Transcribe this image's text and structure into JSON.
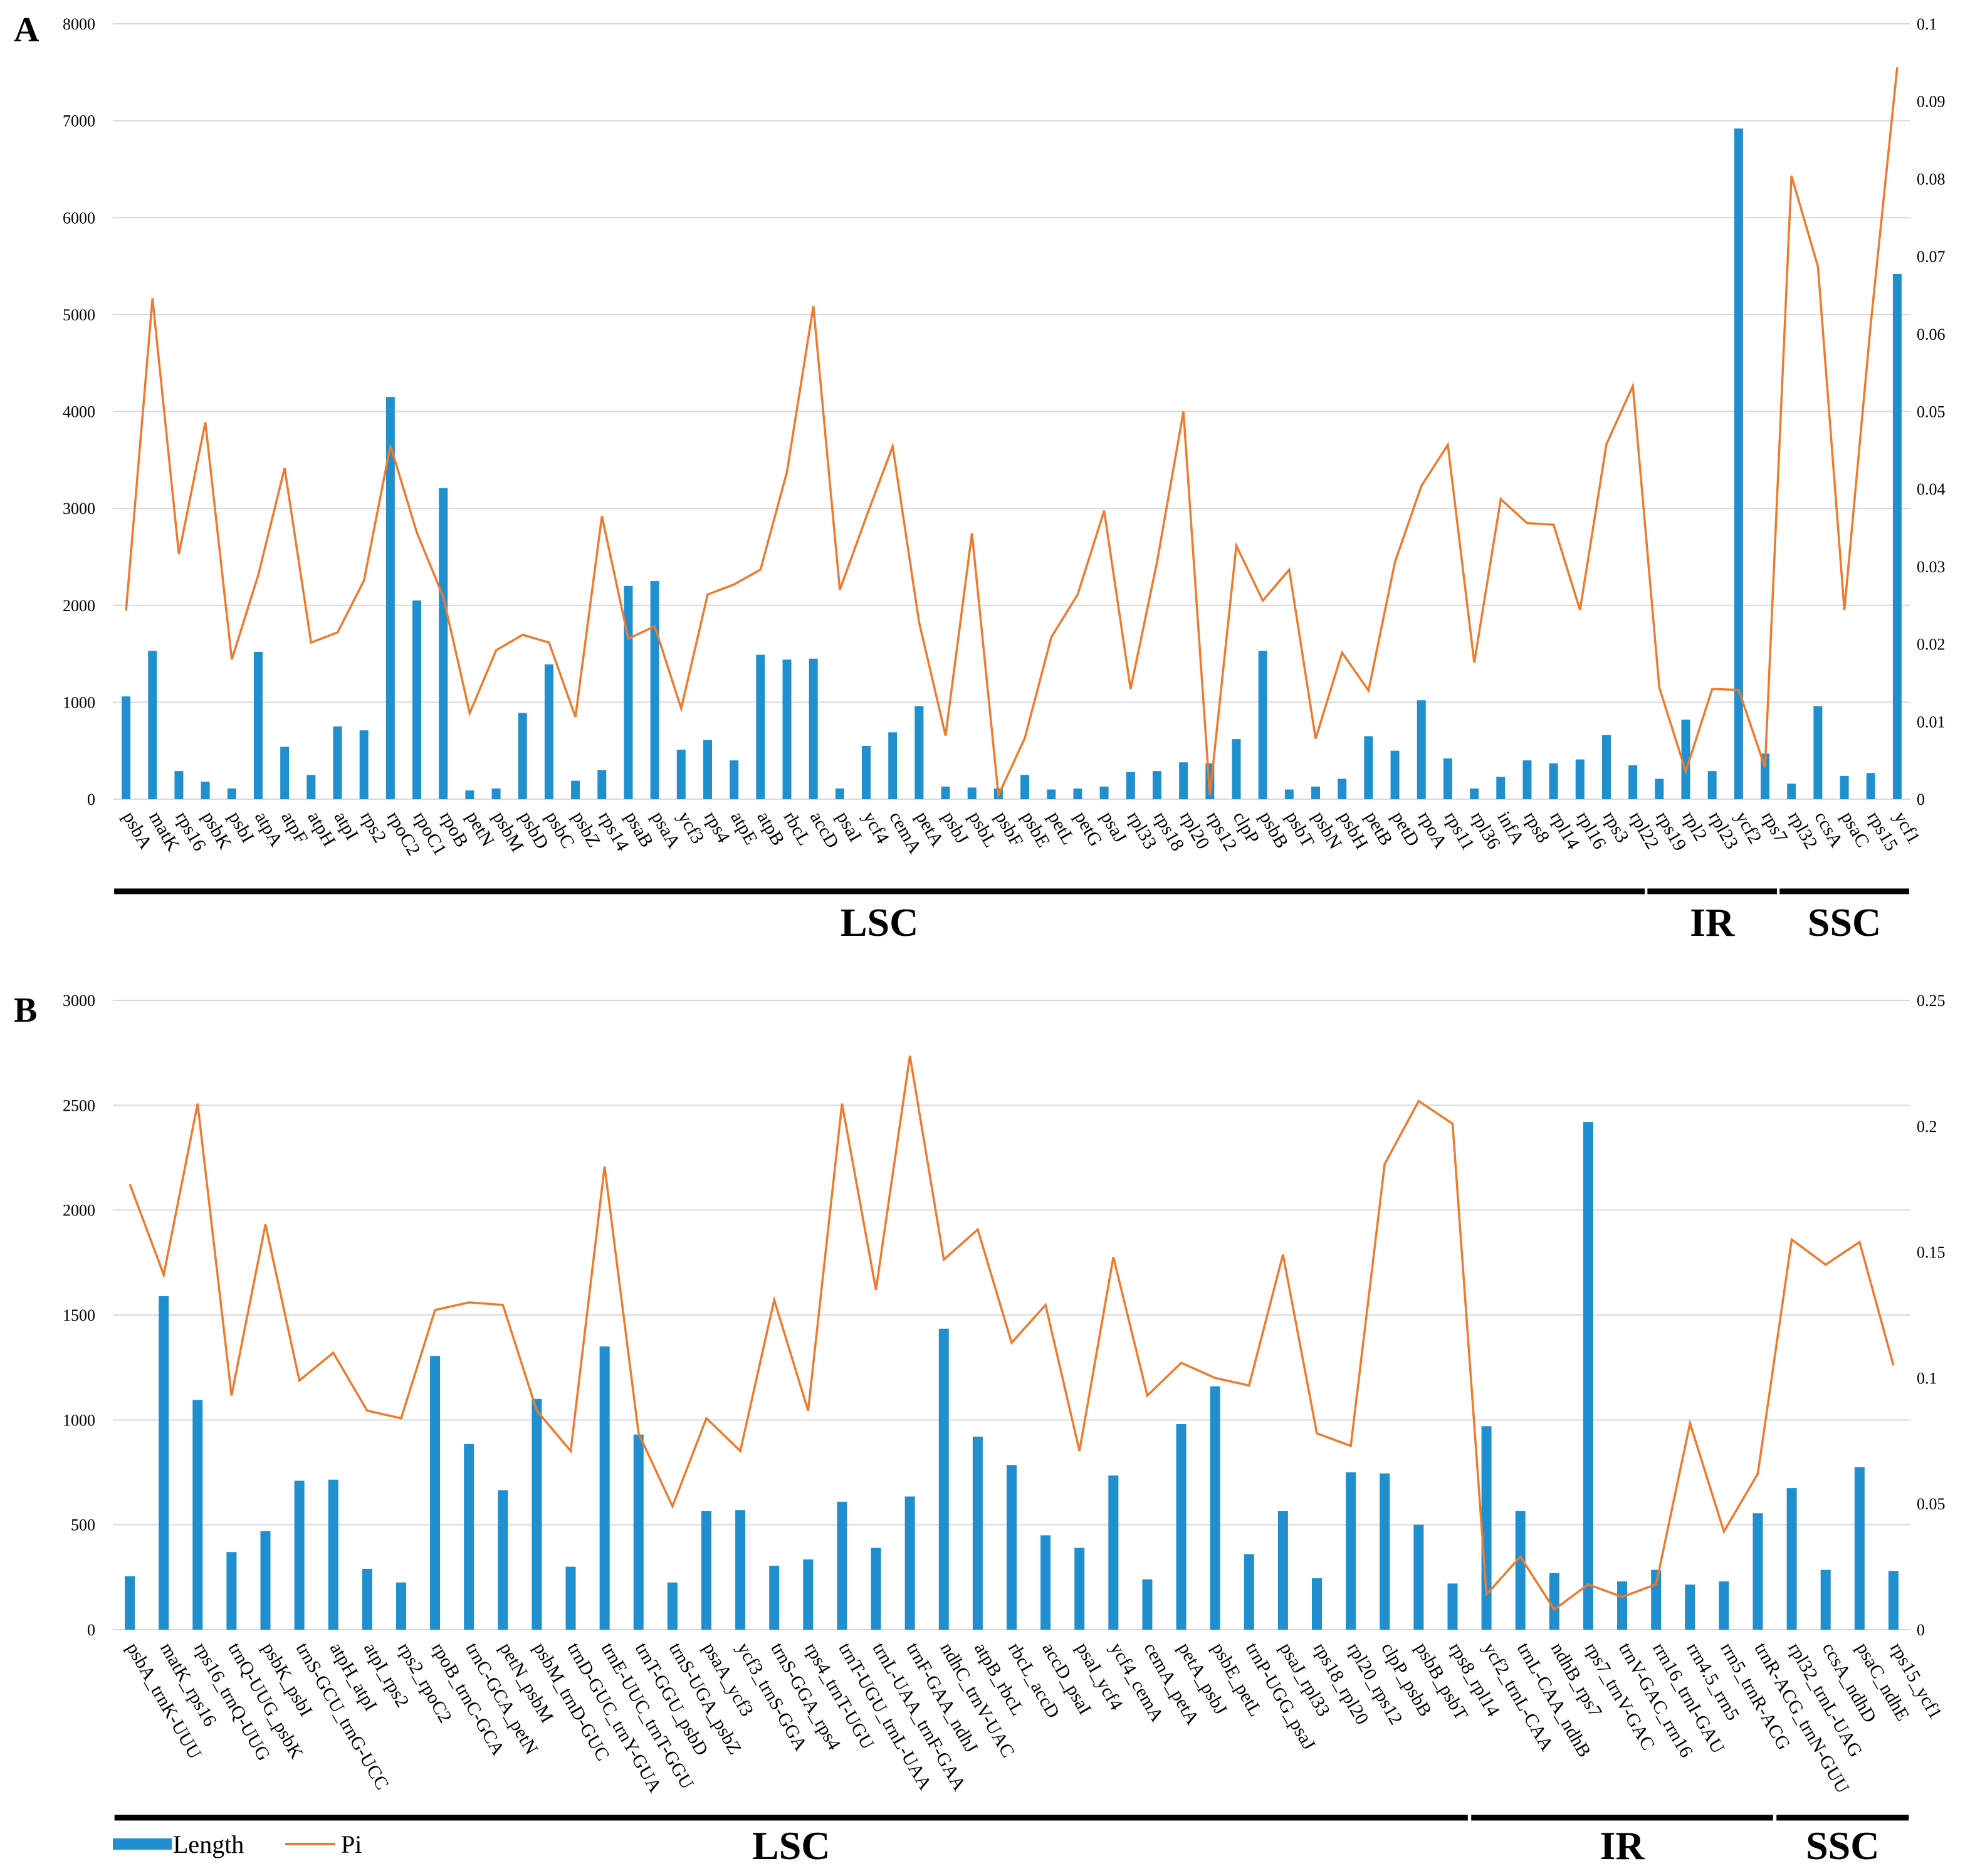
{
  "colors": {
    "length": "#1f8fcf",
    "pi": "#f07a2c",
    "region_bar": "#000000",
    "grid": "#d9d9d9"
  },
  "legend": {
    "length": "Length",
    "pi": "Pi"
  },
  "chart_data": [
    {
      "panel": "A",
      "type": "bar+line",
      "title": "",
      "xlabel": "",
      "ylabel": "",
      "y_left_ticks": [
        "0",
        "1000",
        "2000",
        "3000",
        "4000",
        "5000",
        "6000",
        "7000",
        "8000"
      ],
      "y_right_ticks": [
        "0",
        "0.01",
        "0.02",
        "0.03",
        "0.04",
        "0.05",
        "0.06",
        "0.07",
        "0.08",
        "0.09",
        "0.1"
      ],
      "ylim_left": [
        0,
        8000
      ],
      "ylim_right": [
        0,
        0.1
      ],
      "categories": [
        "psbA",
        "matK",
        "rps16",
        "psbK",
        "psbI",
        "atpA",
        "atpF",
        "atpH",
        "atpI",
        "rps2",
        "rpoC2",
        "rpoC1",
        "rpoB",
        "petN",
        "psbM",
        "psbD",
        "psbC",
        "psbZ",
        "rps14",
        "psaB",
        "psaA",
        "ycf3",
        "rps4",
        "atpE",
        "atpB",
        "rbcL",
        "accD",
        "psaI",
        "ycf4",
        "cemA",
        "petA",
        "psbJ",
        "psbL",
        "psbF",
        "psbE",
        "petL",
        "petG",
        "psaJ",
        "rpl33",
        "rps18",
        "rpl20",
        "rps12",
        "clpP",
        "psbB",
        "psbT",
        "psbN",
        "psbH",
        "petB",
        "petD",
        "rpoA",
        "rps11",
        "rpl36",
        "infA",
        "rps8",
        "rpl14",
        "rpl16",
        "rps3",
        "rpl22",
        "rps19",
        "rpl2",
        "rpl23",
        "ycf2",
        "rps7",
        "rpl32",
        "ccsA",
        "psaC",
        "rps15",
        "ycf1"
      ],
      "series": [
        {
          "name": "Length",
          "axis": "left",
          "values": [
            1060,
            1530,
            290,
            180,
            110,
            1520,
            540,
            250,
            750,
            710,
            4150,
            2050,
            3210,
            90,
            110,
            890,
            1390,
            190,
            300,
            2200,
            2250,
            510,
            610,
            400,
            1490,
            1440,
            1450,
            110,
            550,
            690,
            960,
            130,
            120,
            110,
            250,
            100,
            110,
            130,
            280,
            290,
            380,
            370,
            620,
            1530,
            100,
            130,
            210,
            650,
            500,
            1020,
            420,
            110,
            230,
            400,
            370,
            410,
            660,
            350,
            210,
            820,
            290,
            6920,
            470,
            160,
            960,
            240,
            270,
            5420
          ]
        },
        {
          "name": "Pi",
          "axis": "right",
          "values": [
            0.0243,
            0.0646,
            0.0316,
            0.0486,
            0.018,
            0.0289,
            0.0427,
            0.0202,
            0.0215,
            0.0282,
            0.0456,
            0.0344,
            0.0261,
            0.0111,
            0.0192,
            0.0212,
            0.0202,
            0.0106,
            0.0365,
            0.0207,
            0.0223,
            0.0117,
            0.0264,
            0.0277,
            0.0296,
            0.0422,
            0.0636,
            0.027,
            0.0364,
            0.0455,
            0.0228,
            0.0082,
            0.0343,
            0.0005,
            0.0079,
            0.0209,
            0.0264,
            0.0372,
            0.0142,
            0.0306,
            0.05,
            0.0005,
            0.0327,
            0.0256,
            0.0296,
            0.0078,
            0.0189,
            0.014,
            0.0306,
            0.0404,
            0.0457,
            0.0176,
            0.0387,
            0.0356,
            0.0354,
            0.0244,
            0.0458,
            0.0533,
            0.0144,
            0.0036,
            0.0142,
            0.0141,
            0.0041,
            0.0804,
            0.0687,
            0.0244,
            0.0613,
            0.0944
          ]
        }
      ],
      "regions": [
        {
          "label": "LSC",
          "first": "psbA",
          "last": "rpl22"
        },
        {
          "label": "IR",
          "first": "rps19",
          "last": "rps7"
        },
        {
          "label": "SSC",
          "first": "rpl32",
          "last": "ycf1"
        }
      ]
    },
    {
      "panel": "B",
      "type": "bar+line",
      "title": "",
      "xlabel": "",
      "ylabel": "",
      "y_left_ticks": [
        "0",
        "500",
        "1000",
        "1500",
        "2000",
        "2500",
        "3000"
      ],
      "y_right_ticks": [
        "0",
        "0.05",
        "0.1",
        "0.15",
        "0.2",
        "0.25"
      ],
      "ylim_left": [
        0,
        3000
      ],
      "ylim_right": [
        0,
        0.25
      ],
      "categories": [
        "psbA_trnK-UUU",
        "matK_rps16",
        "rps16_trnQ-UUG",
        "trnQ-UUG_psbK",
        "psbK_psbI",
        "trnS-GCU_trnG-UCC",
        "atpH_atpI",
        "atpI_rps2",
        "rps2_rpoC2",
        "rpoB_trnC-GCA",
        "trnC-GCA_petN",
        "petN_psbM",
        "psbM_trnD-GUC",
        "trnD-GUC_trnY-GUA",
        "trnE-UUC_trnT-GGU",
        "trnT-GGU_psbD",
        "trnS-UGA_psbZ",
        "psaA_ycf3",
        "ycf3_trnS-GGA",
        "trnS-GGA_rps4",
        "rps4_trnT-UGU",
        "trnT-UGU_trnL-UAA",
        "trnL-UAA_trnF-GAA",
        "trnF-GAA_ndhJ",
        "ndhC_trnV-UAC",
        "atpB_rbcL",
        "rbcL_accD",
        "accD_psaI",
        "psaI_ycf4",
        "ycf4_cemA",
        "cemA_petA",
        "petA_psbJ",
        "psbE_petL",
        "trnP-UGG_psaJ",
        "psaJ_rpl33",
        "rps18_rpl20",
        "rpl20_rps12",
        "clpP_psbB",
        "psbB_psbT",
        "rps8_rpl14",
        "ycf2_trnL-CAA",
        "trnL-CAA_ndhB",
        "ndhB_rps7",
        "rps7_trnV-GAC",
        "trnV-GAC_rrn16",
        "rrn16_trnI-GAU",
        "rrn4.5_rrn5",
        "rrn5_trnR-ACG",
        "trnR-ACG_trnN-GUU",
        "rpl32_trnL-UAG",
        "ccsA_ndhD",
        "psaC_ndhE",
        "rps15_ycf1"
      ],
      "series": [
        {
          "name": "Length",
          "axis": "left",
          "values": [
            255,
            1590,
            1095,
            370,
            470,
            710,
            715,
            290,
            225,
            1305,
            885,
            665,
            1100,
            300,
            1350,
            930,
            225,
            565,
            570,
            305,
            335,
            610,
            390,
            635,
            1435,
            920,
            785,
            450,
            390,
            735,
            240,
            980,
            1160,
            360,
            565,
            245,
            750,
            745,
            500,
            220,
            970,
            565,
            270,
            2420,
            230,
            285,
            215,
            230,
            555,
            675,
            285,
            775,
            280
          ]
        },
        {
          "name": "Pi",
          "axis": "right",
          "values": [
            0.177,
            0.141,
            0.209,
            0.093,
            0.161,
            0.099,
            0.11,
            0.087,
            0.084,
            0.127,
            0.13,
            0.129,
            0.087,
            0.071,
            0.184,
            0.078,
            0.049,
            0.084,
            0.071,
            0.131,
            0.087,
            0.209,
            0.135,
            0.228,
            0.147,
            0.159,
            0.114,
            0.129,
            0.071,
            0.148,
            0.093,
            0.106,
            0.1,
            0.097,
            0.149,
            0.078,
            0.073,
            0.185,
            0.21,
            0.201,
            0.014,
            0.029,
            0.008,
            0.018,
            0.013,
            0.018,
            0.082,
            0.039,
            0.062,
            0.155,
            0.145,
            0.154,
            0.105
          ]
        }
      ],
      "regions": [
        {
          "label": "LSC",
          "first": "psbA_trnK-UUU",
          "last": "rps8_rpl14"
        },
        {
          "label": "IR",
          "first": "ycf2_trnL-CAA",
          "last": "trnR-ACG_trnN-GUU"
        },
        {
          "label": "SSC",
          "first": "rpl32_trnL-UAG",
          "last": "rps15_ycf1"
        }
      ]
    }
  ]
}
